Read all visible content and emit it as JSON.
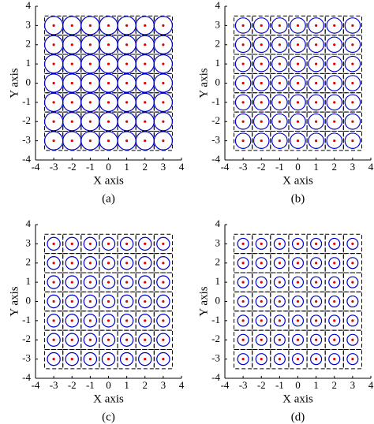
{
  "chart_data": [
    {
      "type": "scatter",
      "caption": "(a)",
      "x_label": "X axis",
      "y_label": "Y axis",
      "xlim": [
        -4,
        4
      ],
      "ylim": [
        -4,
        4
      ],
      "xticks": [
        -4,
        -3,
        -2,
        -1,
        0,
        1,
        2,
        3,
        4
      ],
      "yticks": [
        -4,
        -3,
        -2,
        -1,
        0,
        1,
        2,
        3,
        4
      ],
      "x": [
        -3,
        -2,
        -1,
        0,
        1,
        2,
        3,
        -3,
        -2,
        -1,
        0,
        1,
        2,
        3,
        -3,
        -2,
        -1,
        0,
        1,
        2,
        3,
        -3,
        -2,
        -1,
        0,
        1,
        2,
        3,
        -3,
        -2,
        -1,
        0,
        1,
        2,
        3,
        -3,
        -2,
        -1,
        0,
        1,
        2,
        3,
        -3,
        -2,
        -1,
        0,
        1,
        2,
        3
      ],
      "y": [
        3,
        3,
        3,
        3,
        3,
        3,
        3,
        2,
        2,
        2,
        2,
        2,
        2,
        2,
        1,
        1,
        1,
        1,
        1,
        1,
        1,
        0,
        0,
        0,
        0,
        0,
        0,
        0,
        -1,
        -1,
        -1,
        -1,
        -1,
        -1,
        -1,
        -2,
        -2,
        -2,
        -2,
        -2,
        -2,
        -2,
        -3,
        -3,
        -3,
        -3,
        -3,
        -3,
        -3
      ],
      "circle_radius": 0.5,
      "cell_size": 1,
      "point_color": "#e00000",
      "circle_color": "#0000c8",
      "cell_color": "#000000"
    },
    {
      "type": "scatter",
      "caption": "(b)",
      "x_label": "X axis",
      "y_label": "Y axis",
      "xlim": [
        -4,
        4
      ],
      "ylim": [
        -4,
        4
      ],
      "xticks": [
        -4,
        -3,
        -2,
        -1,
        0,
        1,
        2,
        3,
        4
      ],
      "yticks": [
        -4,
        -3,
        -2,
        -1,
        0,
        1,
        2,
        3,
        4
      ],
      "x": [
        -3,
        -2,
        -1,
        0,
        1,
        2,
        3,
        -3,
        -2,
        -1,
        0,
        1,
        2,
        3,
        -3,
        -2,
        -1,
        0,
        1,
        2,
        3,
        -3,
        -2,
        -1,
        0,
        1,
        2,
        3,
        -3,
        -2,
        -1,
        0,
        1,
        2,
        3,
        -3,
        -2,
        -1,
        0,
        1,
        2,
        3,
        -3,
        -2,
        -1,
        0,
        1,
        2,
        3
      ],
      "y": [
        3,
        3,
        3,
        3,
        3,
        3,
        3,
        2,
        2,
        2,
        2,
        2,
        2,
        2,
        1,
        1,
        1,
        1,
        1,
        1,
        1,
        0,
        0,
        0,
        0,
        0,
        0,
        0,
        -1,
        -1,
        -1,
        -1,
        -1,
        -1,
        -1,
        -2,
        -2,
        -2,
        -2,
        -2,
        -2,
        -2,
        -3,
        -3,
        -3,
        -3,
        -3,
        -3,
        -3
      ],
      "circle_radius": 0.42,
      "cell_size": 1,
      "point_color": "#e00000",
      "circle_color": "#0000c8",
      "cell_color": "#000000"
    },
    {
      "type": "scatter",
      "caption": "(c)",
      "x_label": "X axis",
      "y_label": "Y axis",
      "xlim": [
        -4,
        4
      ],
      "ylim": [
        -4,
        4
      ],
      "xticks": [
        -4,
        -3,
        -2,
        -1,
        0,
        1,
        2,
        3,
        4
      ],
      "yticks": [
        -4,
        -3,
        -2,
        -1,
        0,
        1,
        2,
        3,
        4
      ],
      "x": [
        -3,
        -2,
        -1,
        0,
        1,
        2,
        3,
        -3,
        -2,
        -1,
        0,
        1,
        2,
        3,
        -3,
        -2,
        -1,
        0,
        1,
        2,
        3,
        -3,
        -2,
        -1,
        0,
        1,
        2,
        3,
        -3,
        -2,
        -1,
        0,
        1,
        2,
        3,
        -3,
        -2,
        -1,
        0,
        1,
        2,
        3,
        -3,
        -2,
        -1,
        0,
        1,
        2,
        3
      ],
      "y": [
        3,
        3,
        3,
        3,
        3,
        3,
        3,
        2,
        2,
        2,
        2,
        2,
        2,
        2,
        1,
        1,
        1,
        1,
        1,
        1,
        1,
        0,
        0,
        0,
        0,
        0,
        0,
        0,
        -1,
        -1,
        -1,
        -1,
        -1,
        -1,
        -1,
        -2,
        -2,
        -2,
        -2,
        -2,
        -2,
        -2,
        -3,
        -3,
        -3,
        -3,
        -3,
        -3,
        -3
      ],
      "circle_radius": 0.35,
      "cell_size": 1,
      "point_color": "#e00000",
      "circle_color": "#0000c8",
      "cell_color": "#000000"
    },
    {
      "type": "scatter",
      "caption": "(d)",
      "x_label": "X axis",
      "y_label": "Y axis",
      "xlim": [
        -4,
        4
      ],
      "ylim": [
        -4,
        4
      ],
      "xticks": [
        -4,
        -3,
        -2,
        -1,
        0,
        1,
        2,
        3,
        4
      ],
      "yticks": [
        -4,
        -3,
        -2,
        -1,
        0,
        1,
        2,
        3,
        4
      ],
      "x": [
        -3,
        -2,
        -1,
        0,
        1,
        2,
        3,
        -3,
        -2,
        -1,
        0,
        1,
        2,
        3,
        -3,
        -2,
        -1,
        0,
        1,
        2,
        3,
        -3,
        -2,
        -1,
        0,
        1,
        2,
        3,
        -3,
        -2,
        -1,
        0,
        1,
        2,
        3,
        -3,
        -2,
        -1,
        0,
        1,
        2,
        3,
        -3,
        -2,
        -1,
        0,
        1,
        2,
        3
      ],
      "y": [
        3,
        3,
        3,
        3,
        3,
        3,
        3,
        2,
        2,
        2,
        2,
        2,
        2,
        2,
        1,
        1,
        1,
        1,
        1,
        1,
        1,
        0,
        0,
        0,
        0,
        0,
        0,
        0,
        -1,
        -1,
        -1,
        -1,
        -1,
        -1,
        -1,
        -2,
        -2,
        -2,
        -2,
        -2,
        -2,
        -2,
        -3,
        -3,
        -3,
        -3,
        -3,
        -3,
        -3
      ],
      "circle_radius": 0.3,
      "cell_size": 1,
      "point_color": "#e00000",
      "circle_color": "#0000c8",
      "cell_color": "#000000"
    }
  ]
}
